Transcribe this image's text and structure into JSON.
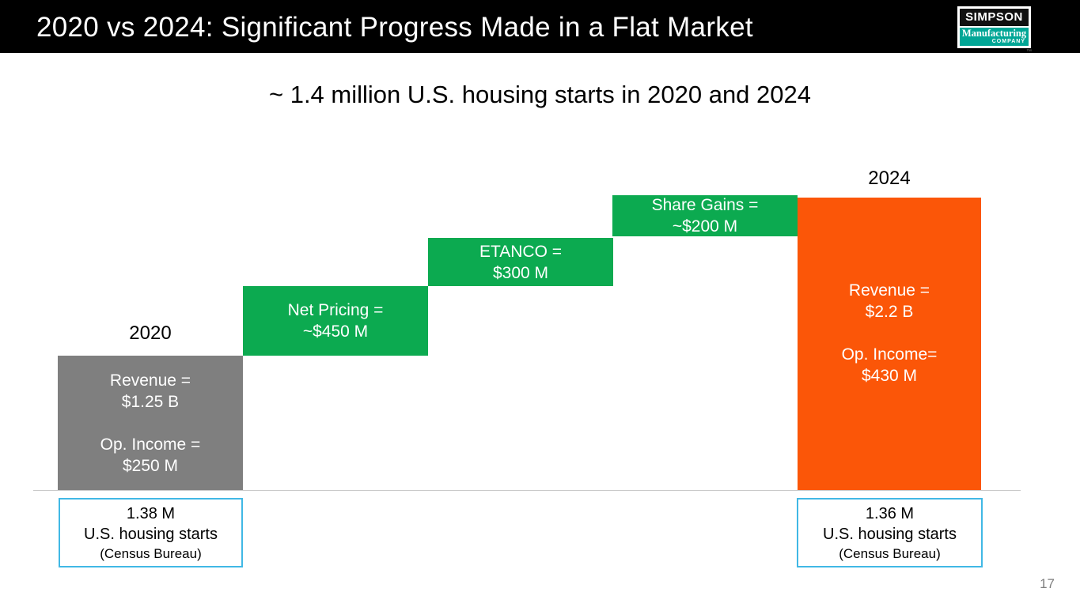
{
  "page_number": "17",
  "header": {
    "title": "2020 vs 2024: Significant Progress Made in a Flat Market",
    "logo": {
      "top_text": "SIMPSON",
      "middle_text": "Manufacturing",
      "bottom_text": "COMPANY",
      "trademark": "™"
    }
  },
  "subtitle": "~ 1.4 million U.S. housing starts in 2020 and 2024",
  "colors": {
    "header_background": "#000000",
    "bar_2020_gray": "#7F7F7F",
    "increment_green": "#0CAA50",
    "bar_2024_orange": "#FB5608",
    "note_box_border": "#41B8E5",
    "logo_teal": "#00A696",
    "axis_line": "#C9C9C9"
  },
  "chart_data": {
    "type": "bar",
    "variant": "waterfall",
    "title": "~ 1.4 million U.S. housing starts in 2020 and 2024",
    "unit": "USD",
    "legend": "none",
    "columns": [
      {
        "key": "2020",
        "axis_label": "2020",
        "role": "start-total",
        "color": "#7F7F7F",
        "revenue": "$1.25 B",
        "op_income": "$250 M",
        "lines": [
          "Revenue =",
          "$1.25 B",
          "Op. Income =",
          "$250 M"
        ]
      },
      {
        "key": "net-pricing",
        "role": "increment",
        "color": "#0CAA50",
        "value": "~$450 M",
        "lines": [
          "Net Pricing =",
          "~$450 M"
        ]
      },
      {
        "key": "etanco",
        "role": "increment",
        "color": "#0CAA50",
        "value": "$300 M",
        "lines": [
          "ETANCO =",
          "$300 M"
        ]
      },
      {
        "key": "share-gains",
        "role": "increment",
        "color": "#0CAA50",
        "value": "~$200 M",
        "lines": [
          "Share Gains =",
          "~$200 M"
        ]
      },
      {
        "key": "2024",
        "axis_label": "2024",
        "role": "end-total",
        "color": "#FB5608",
        "revenue": "$2.2 B",
        "op_income": "$430 M",
        "lines": [
          "Revenue =",
          "$2.2 B",
          "Op. Income=",
          "$430 M"
        ]
      }
    ],
    "values_millions_usd": {
      "revenue_2020": 1250,
      "net_pricing": 450,
      "etanco": 300,
      "share_gains": 200,
      "revenue_2024": 2200,
      "op_income_2020": 250,
      "op_income_2024": 430
    }
  },
  "footnotes": [
    {
      "value": "1.38 M",
      "label": "U.S. housing starts",
      "source": "(Census Bureau)"
    },
    {
      "value": "1.36 M",
      "label": "U.S. housing starts",
      "source": "(Census Bureau)"
    }
  ]
}
